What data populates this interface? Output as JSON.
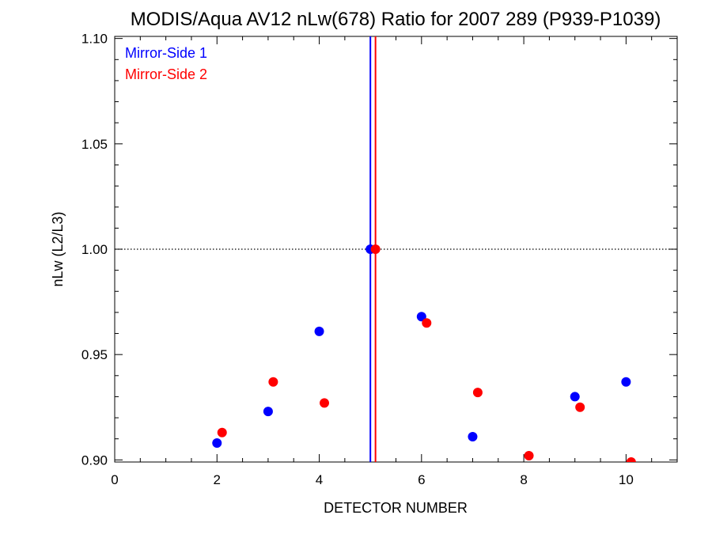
{
  "chart_data": {
    "type": "scatter",
    "title": "MODIS/Aqua AV12 nLw(678) Ratio for 2007 289 (P939-P1039)",
    "xlabel": "DETECTOR NUMBER",
    "ylabel": "nLw (L2/L3)",
    "xlim": [
      0,
      11
    ],
    "ylim": [
      0.899,
      1.101
    ],
    "x_ticks": [
      0,
      2,
      4,
      6,
      8,
      10
    ],
    "x_tick_labels": [
      "0",
      "2",
      "4",
      "6",
      "8",
      "10"
    ],
    "y_ticks": [
      0.9,
      0.95,
      1.0,
      1.05,
      1.1
    ],
    "y_tick_labels": [
      "0.90",
      "0.95",
      "1.00",
      "1.05",
      "1.10"
    ],
    "reference_line_y": 1.0,
    "vertical_lines": [
      {
        "x": 5.0,
        "color": "#0000ff",
        "series": "Mirror-Side 1"
      },
      {
        "x": 5.1,
        "color": "#ff0000",
        "series": "Mirror-Side 2"
      }
    ],
    "legend_position": "top-left",
    "series": [
      {
        "name": "Mirror-Side 1",
        "color": "#0000ff",
        "points": [
          [
            2,
            0.908
          ],
          [
            3,
            0.923
          ],
          [
            4,
            0.961
          ],
          [
            5,
            1.0
          ],
          [
            6,
            0.968
          ],
          [
            7,
            0.911
          ],
          [
            9,
            0.93
          ],
          [
            10,
            0.937
          ]
        ]
      },
      {
        "name": "Mirror-Side 2",
        "color": "#ff0000",
        "points": [
          [
            2.1,
            0.913
          ],
          [
            3.1,
            0.937
          ],
          [
            4.1,
            0.927
          ],
          [
            5.1,
            1.0
          ],
          [
            6.1,
            0.965
          ],
          [
            7.1,
            0.932
          ],
          [
            8.1,
            0.902
          ],
          [
            9.1,
            0.925
          ],
          [
            10.1,
            0.899
          ]
        ]
      }
    ]
  }
}
